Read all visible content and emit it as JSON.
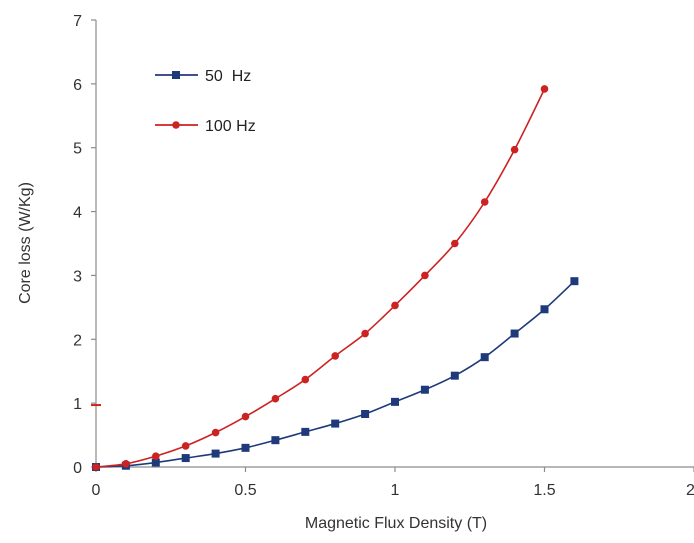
{
  "chart_data": {
    "type": "line",
    "title": "",
    "xlabel": "Magnetic Flux Density (T)",
    "ylabel": "Core loss (W/Kg)",
    "xlim": [
      0,
      2
    ],
    "ylim": [
      0,
      7
    ],
    "x_ticks": [
      "0",
      "0.5",
      "1",
      "1.5",
      "2"
    ],
    "y_ticks": [
      "0",
      "1",
      "2",
      "3",
      "4",
      "5",
      "6",
      "7"
    ],
    "grid": false,
    "legend_position": "top-left",
    "series": [
      {
        "name": "50  Hz",
        "color": "#1f3a7a",
        "marker": "square",
        "x": [
          0,
          0.1,
          0.2,
          0.3,
          0.4,
          0.5,
          0.6,
          0.7,
          0.8,
          0.9,
          1.0,
          1.1,
          1.2,
          1.3,
          1.4,
          1.5,
          1.6
        ],
        "y": [
          0,
          0.02,
          0.07,
          0.14,
          0.21,
          0.3,
          0.42,
          0.55,
          0.68,
          0.83,
          1.02,
          1.21,
          1.43,
          1.72,
          2.09,
          2.47,
          2.91
        ]
      },
      {
        "name": "100 Hz",
        "color": "#cc2222",
        "marker": "circle",
        "x": [
          0,
          0.1,
          0.2,
          0.3,
          0.4,
          0.5,
          0.6,
          0.7,
          0.8,
          0.9,
          1.0,
          1.1,
          1.2,
          1.3,
          1.4,
          1.5
        ],
        "y": [
          0,
          0.05,
          0.17,
          0.33,
          0.54,
          0.79,
          1.07,
          1.37,
          1.74,
          2.09,
          2.53,
          3.0,
          3.5,
          4.15,
          4.97,
          5.92
        ]
      }
    ],
    "annotations": [
      {
        "type": "red-tick-mark",
        "x": 0,
        "y": 0.97
      }
    ]
  }
}
